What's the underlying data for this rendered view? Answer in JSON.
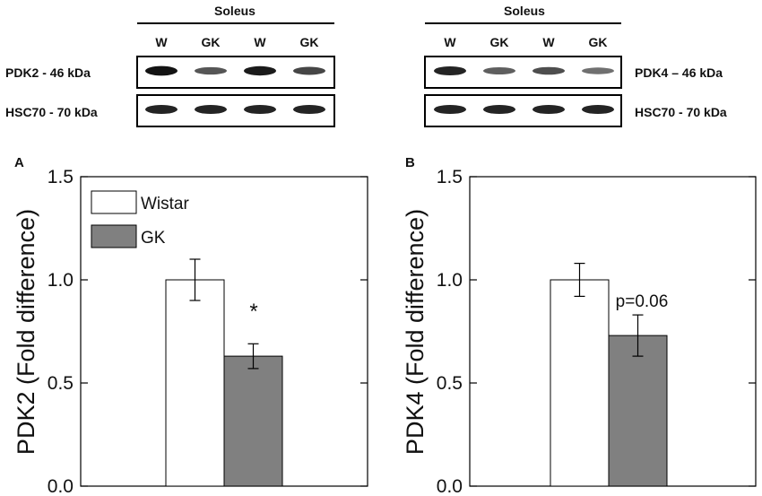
{
  "western_blots": [
    {
      "tissue": "Soleus",
      "lanes": [
        "W",
        "GK",
        "W",
        "GK"
      ],
      "rows": [
        {
          "label": "PDK2 - 46 kDa",
          "band_intensity": [
            0.95,
            0.55,
            0.9,
            0.65
          ]
        },
        {
          "label": "HSC70 - 70 kDa",
          "band_intensity": [
            0.85,
            0.85,
            0.85,
            0.85
          ]
        }
      ]
    },
    {
      "tissue": "Soleus",
      "lanes": [
        "W",
        "GK",
        "W",
        "GK"
      ],
      "rows": [
        {
          "label": "PDK4 – 46 kDa",
          "band_intensity": [
            0.85,
            0.5,
            0.6,
            0.4
          ]
        },
        {
          "label": "HSC70 - 70 kDa",
          "band_intensity": [
            0.85,
            0.85,
            0.85,
            0.85
          ]
        }
      ]
    }
  ],
  "legend": {
    "items": [
      {
        "label": "Wistar",
        "color": "#ffffff"
      },
      {
        "label": "GK",
        "color": "#808080"
      }
    ]
  },
  "chart_data": [
    {
      "type": "bar",
      "panel_label": "A",
      "ylabel": "PDK2 (Fold difference)",
      "ylim": [
        0,
        1.5
      ],
      "yticks": [
        "0.0",
        "0.5",
        "1.0",
        "1.5"
      ],
      "series": [
        {
          "name": "Wistar",
          "value": 1.0,
          "error": 0.1,
          "color": "#ffffff"
        },
        {
          "name": "GK",
          "value": 0.63,
          "error": 0.06,
          "color": "#808080"
        }
      ],
      "annotation": "*"
    },
    {
      "type": "bar",
      "panel_label": "B",
      "ylabel": "PDK4 (Fold difference)",
      "ylim": [
        0,
        1.5
      ],
      "yticks": [
        "0.0",
        "0.5",
        "1.0",
        "1.5"
      ],
      "series": [
        {
          "name": "Wistar",
          "value": 1.0,
          "error": 0.08,
          "color": "#ffffff"
        },
        {
          "name": "GK",
          "value": 0.73,
          "error": 0.1,
          "color": "#808080"
        }
      ],
      "annotation": "p=0.06"
    }
  ]
}
